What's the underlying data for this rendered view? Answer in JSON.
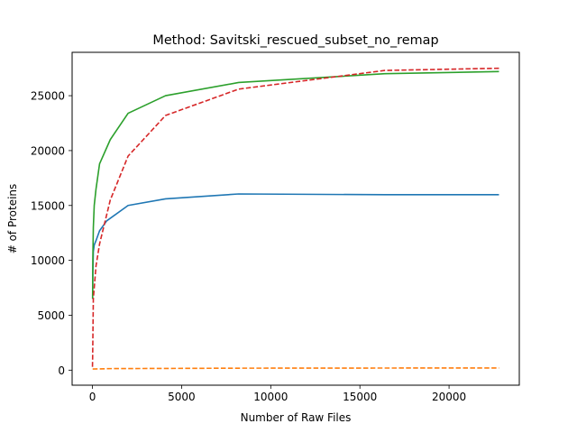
{
  "chart_data": {
    "type": "line",
    "title": "Method: Savitski_rescued_subset_no_remap",
    "xlabel": "Number of Raw Files",
    "ylabel": "# of Proteins",
    "xlim": [
      -1140,
      23940
    ],
    "ylim": [
      -1370,
      28950
    ],
    "x_ticks": [
      0,
      5000,
      10000,
      15000,
      20000
    ],
    "x_tick_labels": [
      "0",
      "5000",
      "10000",
      "15000",
      "20000"
    ],
    "y_ticks": [
      0,
      5000,
      10000,
      15000,
      20000,
      25000
    ],
    "y_tick_labels": [
      "0",
      "5000",
      "10000",
      "15000",
      "20000",
      "25000"
    ],
    "grid": false,
    "legend": "none",
    "series": [
      {
        "color": "#1f77b4",
        "dash": "solid",
        "points": [
          [
            10,
            6500
          ],
          [
            20,
            8500
          ],
          [
            50,
            10800
          ],
          [
            100,
            11400
          ],
          [
            200,
            11800
          ],
          [
            400,
            12700
          ],
          [
            800,
            13600
          ],
          [
            2000,
            15000
          ],
          [
            4100,
            15600
          ],
          [
            8200,
            16050
          ],
          [
            16400,
            15980
          ],
          [
            22800,
            15980
          ]
        ]
      },
      {
        "color": "#ff7f0e",
        "dash": "dashed",
        "points": [
          [
            10,
            100
          ],
          [
            1000,
            140
          ],
          [
            8200,
            180
          ],
          [
            22800,
            200
          ]
        ]
      },
      {
        "color": "#2ca02c",
        "dash": "solid",
        "points": [
          [
            10,
            6500
          ],
          [
            20,
            10000
          ],
          [
            50,
            13000
          ],
          [
            100,
            15000
          ],
          [
            200,
            16500
          ],
          [
            400,
            18800
          ],
          [
            1000,
            21000
          ],
          [
            2000,
            23400
          ],
          [
            4100,
            25000
          ],
          [
            8200,
            26200
          ],
          [
            16400,
            27000
          ],
          [
            22800,
            27200
          ]
        ]
      },
      {
        "color": "#d62728",
        "dash": "dashed",
        "points": [
          [
            0,
            300
          ],
          [
            10,
            1000
          ],
          [
            50,
            6500
          ],
          [
            100,
            7500
          ],
          [
            200,
            9500
          ],
          [
            400,
            11500
          ],
          [
            1000,
            15500
          ],
          [
            2000,
            19500
          ],
          [
            4100,
            23200
          ],
          [
            8200,
            25600
          ],
          [
            16400,
            27300
          ],
          [
            22800,
            27500
          ]
        ]
      }
    ]
  }
}
